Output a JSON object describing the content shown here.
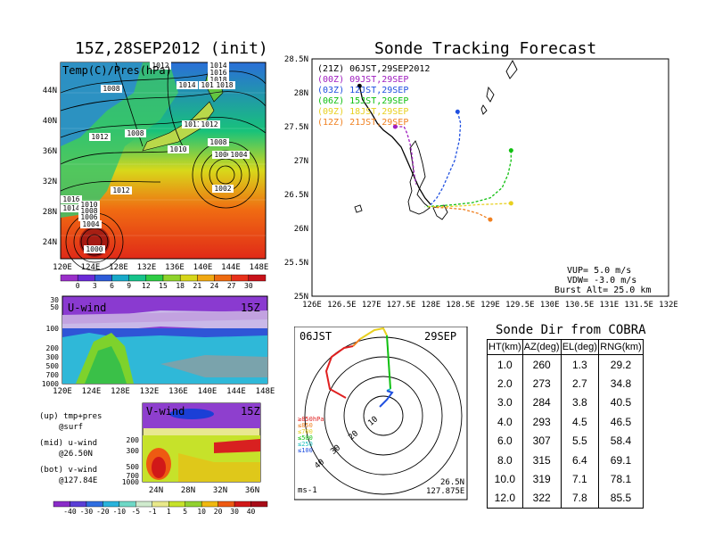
{
  "map_panel": {
    "title": "15Z,28SEP2012 (init)",
    "overlay_label": "Temp(C)/Pres(hPa)",
    "lat_labels": [
      "44N",
      "40N",
      "36N",
      "32N",
      "28N",
      "24N"
    ],
    "lon_labels": [
      "120E",
      "124E",
      "128E",
      "132E",
      "136E",
      "140E",
      "144E",
      "148E"
    ],
    "pressure_labels": [
      "1012",
      "1014",
      "1016",
      "1018",
      "1008",
      "1014",
      "1016",
      "1018",
      "1008",
      "1004",
      "1012",
      "1011",
      "1012",
      "1008",
      "1010",
      "1006",
      "1004",
      "1002",
      "1012",
      "1016",
      "1014",
      "1010",
      "1008",
      "1006",
      "1004",
      "1000"
    ],
    "colorbar_ticks": [
      "0",
      "3",
      "6",
      "9",
      "12",
      "15",
      "18",
      "21",
      "24",
      "27",
      "30"
    ],
    "colorbar_colors": [
      "#9a2fc9",
      "#6a2ad6",
      "#2c5bd8",
      "#18a9c9",
      "#16c38a",
      "#2ecc44",
      "#8fd32a",
      "#d6d61a",
      "#f0a812",
      "#ee6a10",
      "#e8301a",
      "#c8121a"
    ]
  },
  "u_panel": {
    "label": "U-wind",
    "time": "15Z",
    "y_ticks": [
      "30",
      "50",
      "100",
      "200",
      "300",
      "500",
      "700",
      "1000"
    ],
    "x_ticks": [
      "120E",
      "124E",
      "128E",
      "132E",
      "136E",
      "140E",
      "144E",
      "148E"
    ]
  },
  "v_panel": {
    "label": "V-wind",
    "time": "15Z",
    "y_ticks": [
      "200",
      "300",
      "500",
      "700",
      "1000"
    ],
    "x_ticks": [
      "24N",
      "28N",
      "32N",
      "36N"
    ],
    "colorbar_ticks": [
      "-40",
      "-30",
      "-20",
      "-10",
      "-5",
      "-1",
      "1",
      "5",
      "10",
      "20",
      "30",
      "40"
    ],
    "colorbar_colors": [
      "#8a2cc8",
      "#5a3fd6",
      "#2f6ee0",
      "#29b3dc",
      "#6ed8c6",
      "#cfeacd",
      "#e8e88a",
      "#c6e22a",
      "#92d130",
      "#f0b810",
      "#ee5a12",
      "#d11818",
      "#a80c18"
    ]
  },
  "legend_notes": [
    "(up) tmp+pres",
    "@surf",
    "(mid) u-wind",
    "@26.50N",
    "(bot) v-wind",
    "@127.84E"
  ],
  "track_panel": {
    "title": "Sonde Tracking Forecast",
    "times": [
      {
        "label": "(21Z) 06JST,29SEP2012",
        "color": "#000000"
      },
      {
        "label": "(00Z) 09JST,29SEP",
        "color": "#a020c0"
      },
      {
        "label": "(03Z) 12JST,29SEP",
        "color": "#2050e0"
      },
      {
        "label": "(06Z) 15JST,29SEP",
        "color": "#10c010"
      },
      {
        "label": "(09Z) 18JST,29SEP",
        "color": "#e8d020"
      },
      {
        "label": "(12Z) 21JST,29SEP",
        "color": "#f08020"
      }
    ],
    "lat_labels": [
      "28.5N",
      "28N",
      "27.5N",
      "27N",
      "26.5N",
      "26N",
      "25.5N",
      "25N"
    ],
    "lon_labels": [
      "126E",
      "126.5E",
      "127E",
      "127.5E",
      "128E",
      "128.5E",
      "129E",
      "129.5E",
      "130E",
      "130.5E",
      "131E",
      "131.5E",
      "132E"
    ],
    "params": [
      "VUP= 5.0 m/s",
      "VDW= -3.0 m/s",
      "Burst Alt= 25.0 km"
    ]
  },
  "chart_data": [
    {
      "type": "line",
      "title": "Sonde Tracking Forecast",
      "xlabel": "",
      "ylabel": "",
      "xlim": [
        126,
        132
      ],
      "ylim": [
        25,
        28.5
      ],
      "series": [
        {
          "name": "(21Z) 06JST,29SEP2012",
          "x": [
            126.8,
            126.85,
            127.0,
            127.1,
            127.2,
            127.35,
            127.5,
            127.6,
            127.7,
            127.8,
            127.9,
            128.0
          ],
          "y": [
            28.1,
            27.9,
            27.7,
            27.55,
            27.45,
            27.35,
            27.2,
            27.0,
            26.8,
            26.6,
            26.45,
            26.35
          ]
        },
        {
          "name": "(00Z) 09JST,29SEP",
          "x": [
            127.4,
            127.55,
            127.6,
            127.65,
            127.68,
            127.7,
            127.72,
            127.75
          ],
          "y": [
            27.5,
            27.5,
            27.4,
            27.25,
            27.1,
            26.95,
            26.8,
            26.65
          ]
        },
        {
          "name": "(03Z) 12JST,29SEP",
          "x": [
            128.45,
            128.5,
            128.48,
            128.4,
            128.3,
            128.2,
            128.1,
            128.0
          ],
          "y": [
            27.72,
            27.55,
            27.3,
            27.0,
            26.8,
            26.6,
            26.45,
            26.35
          ]
        },
        {
          "name": "(06Z) 15JST,29SEP",
          "x": [
            129.35,
            129.35,
            129.3,
            129.2,
            129.0,
            128.7,
            128.4,
            128.1,
            127.9
          ],
          "y": [
            27.15,
            27.0,
            26.8,
            26.6,
            26.45,
            26.38,
            26.35,
            26.33,
            26.32
          ]
        },
        {
          "name": "(09Z) 18JST,29SEP",
          "x": [
            129.35,
            129.1,
            128.8,
            128.5,
            128.2,
            127.95
          ],
          "y": [
            26.37,
            26.36,
            26.35,
            26.33,
            26.32,
            26.32
          ]
        },
        {
          "name": "(12Z) 21JST,29SEP",
          "x": [
            129.0,
            128.8,
            128.55,
            128.3,
            128.05
          ],
          "y": [
            26.13,
            26.22,
            26.28,
            26.3,
            26.31
          ]
        }
      ]
    },
    {
      "type": "table",
      "title": "Sonde Dir from COBRA",
      "columns": [
        "HT(km)",
        "AZ(deg)",
        "EL(deg)",
        "RNG(km)"
      ],
      "rows": [
        [
          "1.0",
          "260",
          "1.3",
          "29.2"
        ],
        [
          "2.0",
          "273",
          "2.7",
          "34.8"
        ],
        [
          "3.0",
          "284",
          "3.8",
          "40.5"
        ],
        [
          "4.0",
          "293",
          "4.5",
          "46.5"
        ],
        [
          "6.0",
          "307",
          "5.5",
          "58.4"
        ],
        [
          "8.0",
          "315",
          "6.4",
          "69.1"
        ],
        [
          "10.0",
          "319",
          "7.1",
          "78.1"
        ],
        [
          "12.0",
          "322",
          "7.8",
          "85.5"
        ]
      ]
    }
  ],
  "polar_panel": {
    "left_label": "06JST",
    "right_label": "29SEP",
    "ring_labels": [
      "10",
      "20",
      "30",
      "40"
    ],
    "pressure_legend": [
      {
        "label": "≥850hPa",
        "color": "#e02020"
      },
      {
        "label": "≤850",
        "color": "#f08020"
      },
      {
        "label": "≤700",
        "color": "#e8d020"
      },
      {
        "label": "≤500",
        "color": "#10c010"
      },
      {
        "label": "≤250",
        "color": "#20c0c0"
      },
      {
        "label": "≤100",
        "color": "#2050e0"
      }
    ],
    "unit": "ms-1",
    "position": [
      "26.5N",
      "127.875E"
    ]
  }
}
